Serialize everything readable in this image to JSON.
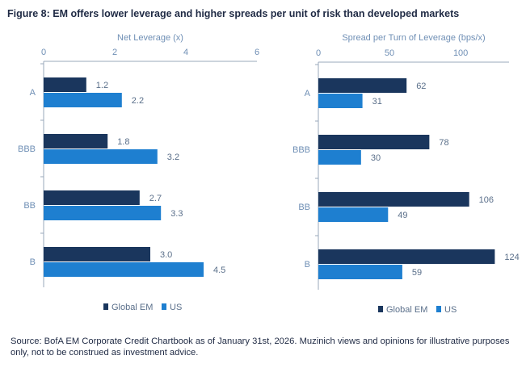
{
  "title": "Figure 8: EM offers lower leverage and higher spreads per unit of risk than developed markets",
  "source": "Source: BofA EM Corporate Credit Chartbook as of January 31st, 2026. Muzinich views and opinions for illustrative purposes only, not to be construed as investment advice.",
  "colors": {
    "global_em": "#1a365d",
    "us": "#1e7fd0",
    "axis_text": "#6f8fb5",
    "label_text": "#5a6f8a",
    "axis_line": "#9aa9bb"
  },
  "chart_data": [
    {
      "type": "bar",
      "orientation": "horizontal",
      "title": "Net Leverage (x)",
      "categories": [
        "A",
        "BBB",
        "BB",
        "B"
      ],
      "series": [
        {
          "name": "Global EM",
          "values": [
            1.2,
            1.8,
            2.7,
            3.0
          ],
          "labels": [
            "1.2",
            "1.8",
            "2.7",
            "3.0"
          ]
        },
        {
          "name": "US",
          "values": [
            2.2,
            3.2,
            3.3,
            4.5
          ],
          "labels": [
            "2.2",
            "3.2",
            "3.3",
            "4.5"
          ]
        }
      ],
      "xlim": [
        0,
        6
      ],
      "ticks": [
        0,
        2,
        4,
        6
      ],
      "tick_labels": [
        "0",
        "2",
        "4",
        "6"
      ],
      "legend": "bottom"
    },
    {
      "type": "bar",
      "orientation": "horizontal",
      "title": "Spread per Turn of Leverage (bps/x)",
      "categories": [
        "A",
        "BBB",
        "BB",
        "B"
      ],
      "series": [
        {
          "name": "Global EM",
          "values": [
            62,
            78,
            106,
            124
          ],
          "labels": [
            "62",
            "78",
            "106",
            "124"
          ]
        },
        {
          "name": "US",
          "values": [
            31,
            30,
            49,
            59
          ],
          "labels": [
            "31",
            "30",
            "49",
            "59"
          ]
        }
      ],
      "xlim": [
        0,
        134
      ],
      "ticks": [
        0,
        50,
        100
      ],
      "tick_labels": [
        "0",
        "50",
        "100"
      ],
      "legend": "bottom"
    }
  ]
}
